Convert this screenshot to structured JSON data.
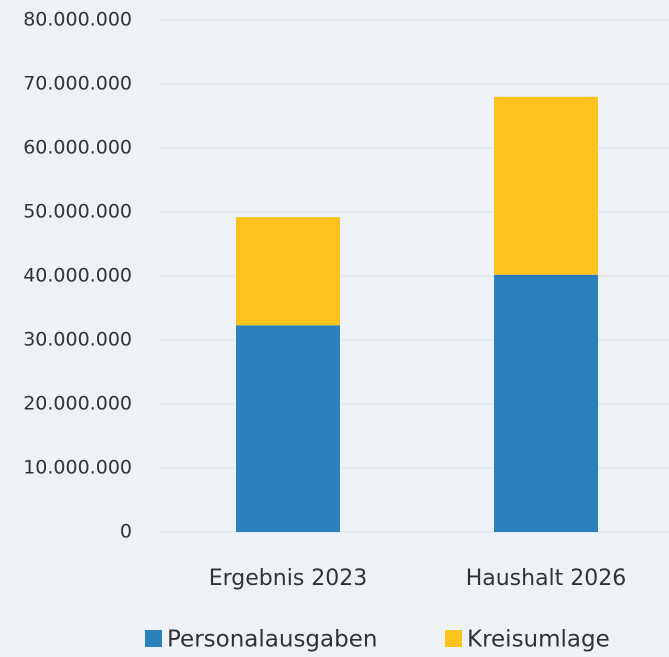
{
  "chart_data": {
    "type": "stacked-bar",
    "categories": [
      "Ergebnis 2023",
      "Haushalt 2026"
    ],
    "series": [
      {
        "name": "Personalausgaben",
        "color": "#2980ba",
        "values": [
          32300000,
          40200000
        ]
      },
      {
        "name": "Kreisumlage",
        "color": "#fcc31e",
        "values": [
          16900000,
          27800000
        ]
      }
    ],
    "ylim": [
      0,
      80000000
    ],
    "yticks": [
      0,
      {
        "value": 10000000,
        "label": "10.000.000"
      },
      {
        "value": 20000000,
        "label": "20.000.000"
      },
      {
        "value": 30000000,
        "label": "30.000.000"
      },
      {
        "value": 40000000,
        "label": "40.000.000"
      },
      {
        "value": 50000000,
        "label": "50.000.000"
      },
      {
        "value": 60000000,
        "label": "60.000.000"
      },
      {
        "value": 70000000,
        "label": "70.000.000"
      },
      {
        "value": 80000000,
        "label": "80.000.000"
      }
    ],
    "grid": true,
    "legend": "bottom"
  }
}
